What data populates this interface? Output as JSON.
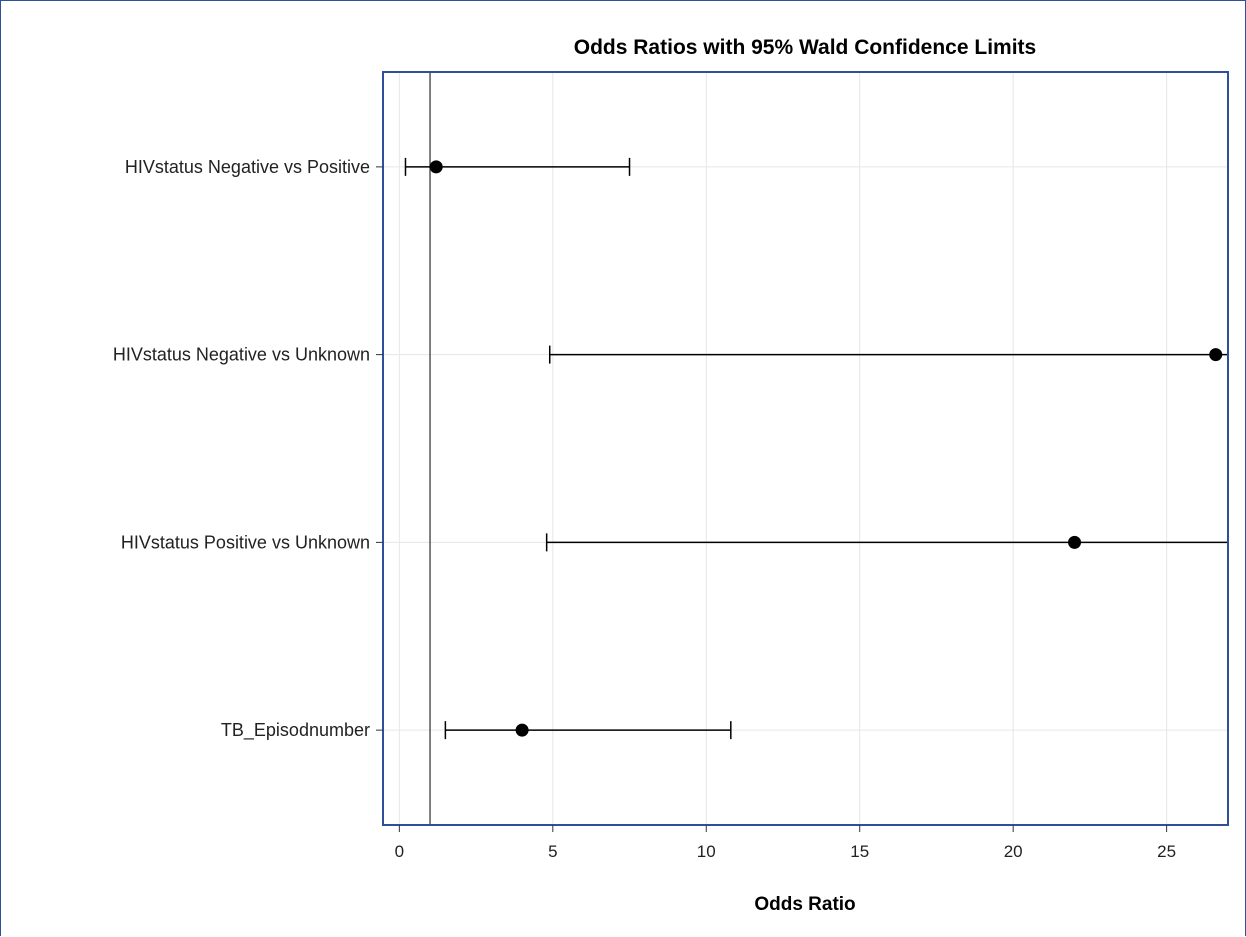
{
  "chart_data": {
    "type": "scatter",
    "title": "Odds Ratios with 95% Wald Confidence Limits",
    "xlabel": "Odds Ratio",
    "ylabel": "",
    "xlim": [
      -0.5,
      27
    ],
    "xticks": [
      0,
      5,
      10,
      15,
      20,
      25
    ],
    "reference_line": 1,
    "grid": true,
    "categories": [
      "HIVstatus Negative vs Positive",
      "HIVstatus Negative vs Unknown",
      "HIVstatus Positive vs Unknown",
      "TB_Episodnumber"
    ],
    "estimates": [
      1.2,
      26.6,
      22.0,
      4.0
    ],
    "lower": [
      0.2,
      4.9,
      4.8,
      1.5
    ],
    "upper": [
      7.5,
      27,
      27,
      10.8
    ],
    "upper_clipped": [
      false,
      true,
      true,
      false
    ]
  },
  "colors": {
    "frame": "#2f4f9a",
    "grid": "#e6e6e6",
    "marker": "#000000",
    "reference": "#555555"
  }
}
